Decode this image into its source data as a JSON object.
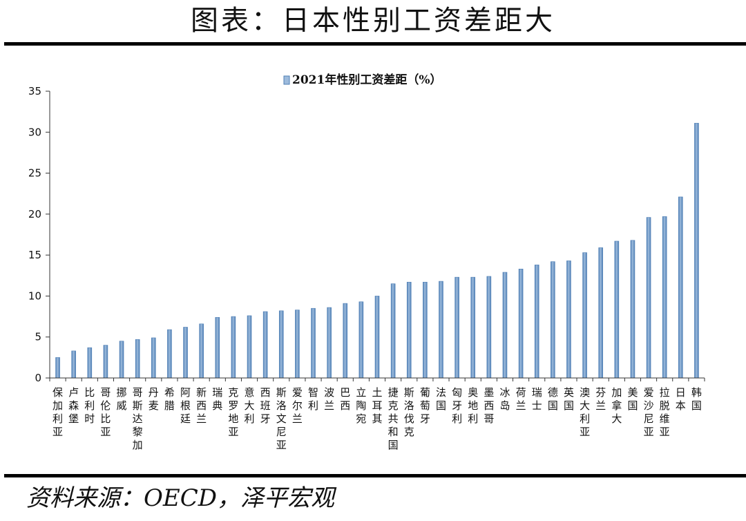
{
  "header": {
    "title": "图表：日本性别工资差距大"
  },
  "footer": {
    "source": "资料来源：OECD，泽平宏观"
  },
  "colors": {
    "bar_fill": "#9dbbdc",
    "bar_edge": "#4f7fb5",
    "axis": "#333333"
  },
  "chart_data": {
    "type": "bar",
    "legend": {
      "label": "2021年性别工资差距（%）",
      "position": "top"
    },
    "ylim": [
      0,
      35
    ],
    "yticks": [
      0,
      5,
      10,
      15,
      20,
      25,
      30,
      35
    ],
    "grid": false,
    "categories": [
      "保加利亚",
      "卢森堡",
      "比利时",
      "哥伦比亚",
      "挪威",
      "哥斯达黎加",
      "丹麦",
      "希腊",
      "阿根廷",
      "新西兰",
      "瑞典",
      "克罗地亚",
      "意大利",
      "西班牙",
      "斯洛文尼亚",
      "爱尔兰",
      "智利",
      "波兰",
      "巴西",
      "立陶宛",
      "土耳其",
      "捷克共和国",
      "斯洛伐克",
      "葡萄牙",
      "法国",
      "匈牙利",
      "奥地利",
      "墨西哥",
      "冰岛",
      "荷兰",
      "瑞士",
      "德国",
      "英国",
      "澳大利亚",
      "芬兰",
      "加拿大",
      "美国",
      "爱沙尼亚",
      "拉脱维亚",
      "日本",
      "韩国"
    ],
    "series": [
      {
        "name": "2021年性别工资差距（%）",
        "values": [
          2.5,
          3.3,
          3.7,
          4.0,
          4.5,
          4.7,
          4.9,
          5.9,
          6.2,
          6.6,
          7.4,
          7.5,
          7.6,
          8.1,
          8.2,
          8.3,
          8.5,
          8.6,
          9.1,
          9.3,
          10.0,
          11.5,
          11.7,
          11.7,
          11.8,
          12.3,
          12.3,
          12.4,
          12.9,
          13.3,
          13.8,
          14.2,
          14.3,
          15.3,
          15.9,
          16.7,
          16.8,
          19.6,
          19.7,
          22.1,
          31.1
        ]
      }
    ]
  }
}
